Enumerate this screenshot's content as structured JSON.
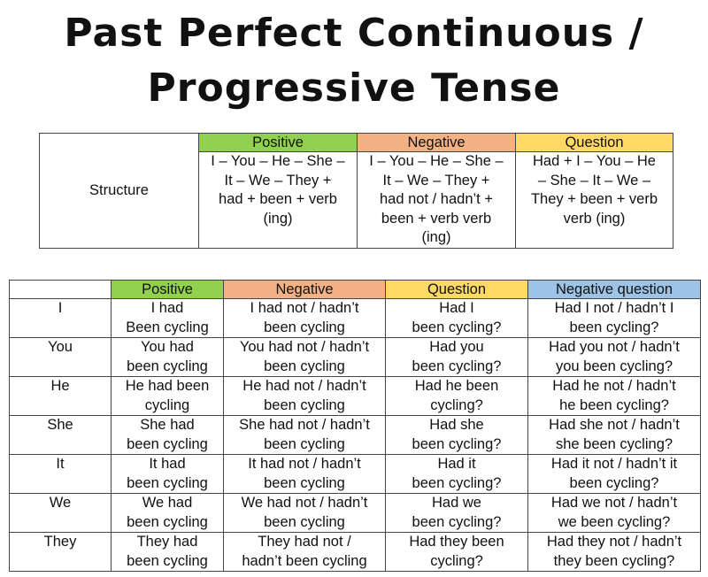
{
  "title": {
    "line1": "Past Perfect Continuous /",
    "line2": "Progressive Tense"
  },
  "colors": {
    "positive": "#92d050",
    "negative": "#f4b183",
    "question": "#ffd966",
    "negative_question": "#9dc3e6"
  },
  "structure_table": {
    "headers": [
      "Positive",
      "Negative",
      "Question"
    ],
    "row_label": "Structure",
    "cells": [
      "I – You – He – She –\nIt – We – They +\nhad + been + verb\n(ing)",
      "I – You – He – She –\nIt – We – They +\nhad not / hadn’t +\nbeen +  verb verb\n(ing)",
      "Had + I – You – He\n– She – It – We –\nThey + been + verb\nverb (ing)"
    ]
  },
  "conjugation_table": {
    "headers": [
      "",
      "Positive",
      "Negative",
      "Question",
      "Negative question"
    ],
    "rows": [
      {
        "subject": "I",
        "positive": "I had\nBeen cycling",
        "negative": "I had not / hadn’t\nbeen cycling",
        "question": "Had I\nbeen cycling?",
        "negative_question": "Had I not / hadn’t I\nbeen cycling?"
      },
      {
        "subject": "You",
        "positive": "You had\nbeen cycling",
        "negative": "You had not / hadn’t\nbeen cycling",
        "question": "Had you\nbeen cycling?",
        "negative_question": "Had you not / hadn’t\nyou been cycling?"
      },
      {
        "subject": "He",
        "positive": "He had been\ncycling",
        "negative": "He had not / hadn’t\nbeen cycling",
        "question": "Had he been\ncycling?",
        "negative_question": "Had he not / hadn’t\nhe been cycling?"
      },
      {
        "subject": "She",
        "positive": "She had\nbeen cycling",
        "negative": "She had not / hadn’t\nbeen cycling",
        "question": "Had she\nbeen cycling?",
        "negative_question": "Had she not / hadn’t\nshe been cycling?"
      },
      {
        "subject": "It",
        "positive": "It had\nbeen cycling",
        "negative": "It had not / hadn’t\nbeen cycling",
        "question": "Had it\nbeen cycling?",
        "negative_question": "Had it not / hadn’t it\nbeen cycling?"
      },
      {
        "subject": "We",
        "positive": "We had\nbeen cycling",
        "negative": "We had not / hadn’t\nbeen cycling",
        "question": "Had we\nbeen cycling?",
        "negative_question": "Had we not / hadn’t\nwe been cycling?"
      },
      {
        "subject": "They",
        "positive": "They had\nbeen cycling",
        "negative": "They had not /\nhadn’t been cycling",
        "question": "Had they been\ncycling?",
        "negative_question": "Had they not / hadn’t\nthey been cycling?"
      }
    ]
  }
}
